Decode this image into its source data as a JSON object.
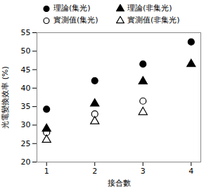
{
  "chart_data": {
    "type": "scatter",
    "x_label": "接合數",
    "y_label": "光電變換效率 (%)",
    "x": [
      1,
      2,
      3,
      4
    ],
    "series": [
      {
        "name": "理論(集光)",
        "color": "#000000",
        "marker": "circle",
        "values": [
          34.3,
          42,
          46.5,
          52.5
        ]
      },
      {
        "name": "理論(非集光)",
        "color": "#000000",
        "marker": "triangle",
        "values": [
          29,
          35.8,
          41.8,
          46.5
        ]
      },
      {
        "name": "實測值(集光)",
        "color": "#000000",
        "marker": "circle-open",
        "values": [
          28,
          33,
          36.5,
          null
        ]
      },
      {
        "name": "實測值(非集光)",
        "color": "#000000",
        "marker": "triangle-open",
        "values": [
          26,
          31,
          33.5,
          null
        ]
      }
    ],
    "xlim": [
      0.8,
      4.2
    ],
    "xticks": [
      1,
      2,
      3,
      4
    ],
    "ylim": [
      20,
      55
    ],
    "yticks": [
      20,
      25,
      30,
      35,
      40,
      45,
      50,
      55
    ],
    "grid": false,
    "legend": "top"
  }
}
